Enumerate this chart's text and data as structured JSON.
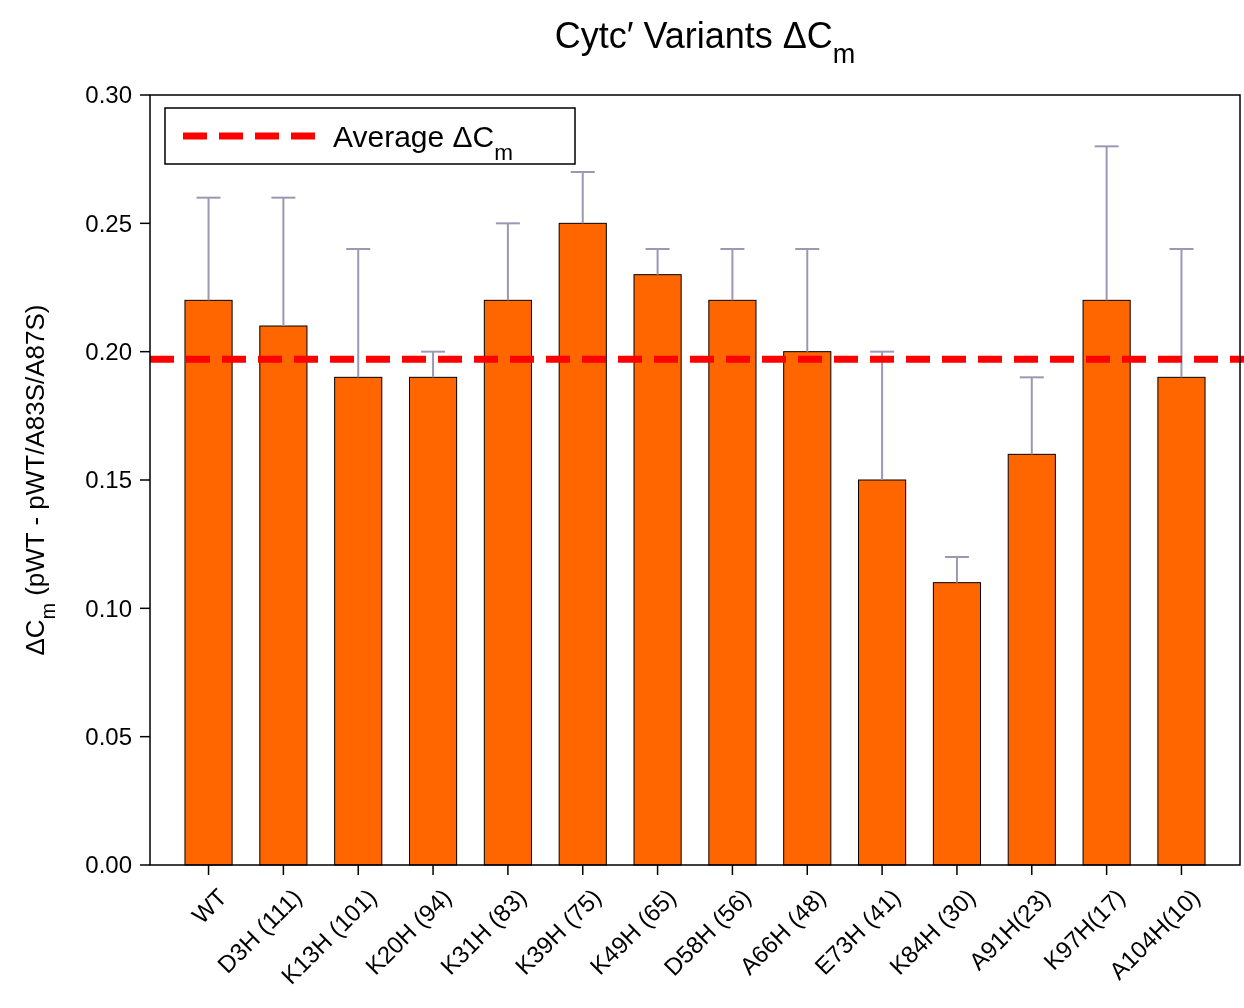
{
  "chart_data": {
    "type": "bar",
    "title": "Cytc′ Variants ΔC$_{m}$",
    "ylabel": "ΔC$_{m}$ (pWT - pWT/A83S/A87S)",
    "categories": [
      "WT",
      "D3H (111)",
      "K13H (101)",
      "K20H (94)",
      "K31H (83)",
      "K39H (75)",
      "K49H (65)",
      "D58H (56)",
      "A66H (48)",
      "E73H (41)",
      "K84H (30)",
      "A91H(23)",
      "K97H(17)",
      "A104H(10)"
    ],
    "values": [
      0.22,
      0.21,
      0.19,
      0.19,
      0.22,
      0.25,
      0.23,
      0.22,
      0.2,
      0.15,
      0.11,
      0.16,
      0.22,
      0.19
    ],
    "errors": [
      [
        0.22,
        0.26
      ],
      [
        0.21,
        0.26
      ],
      [
        0.19,
        0.24
      ],
      [
        0.19,
        0.2
      ],
      [
        0.22,
        0.25
      ],
      [
        0.25,
        0.27
      ],
      [
        0.23,
        0.24
      ],
      [
        0.22,
        0.24
      ],
      [
        0.2,
        0.24
      ],
      [
        0.15,
        0.2
      ],
      [
        0.11,
        0.12
      ],
      [
        0.16,
        0.19
      ],
      [
        0.22,
        0.28
      ],
      [
        0.19,
        0.24
      ]
    ],
    "color": "#ff6600",
    "ylim": [
      0,
      0.3
    ],
    "yticks": [
      {
        "value": 0,
        "label": "0.00"
      },
      {
        "value": 0.05,
        "label": "0.05"
      },
      {
        "value": 0.1,
        "label": "0.10"
      },
      {
        "value": 0.15,
        "label": "0.15"
      },
      {
        "value": 0.2,
        "label": "0.20"
      },
      {
        "value": 0.25,
        "label": "0.25"
      },
      {
        "value": 0.3,
        "label": "0.30"
      }
    ],
    "ref_lines": [
      {
        "axis": "y",
        "value": 0.197,
        "label": "Average ΔC$_{m}$",
        "color": "#ff0000",
        "line_style": "dashed"
      }
    ],
    "legend": "top left",
    "grid": false
  }
}
